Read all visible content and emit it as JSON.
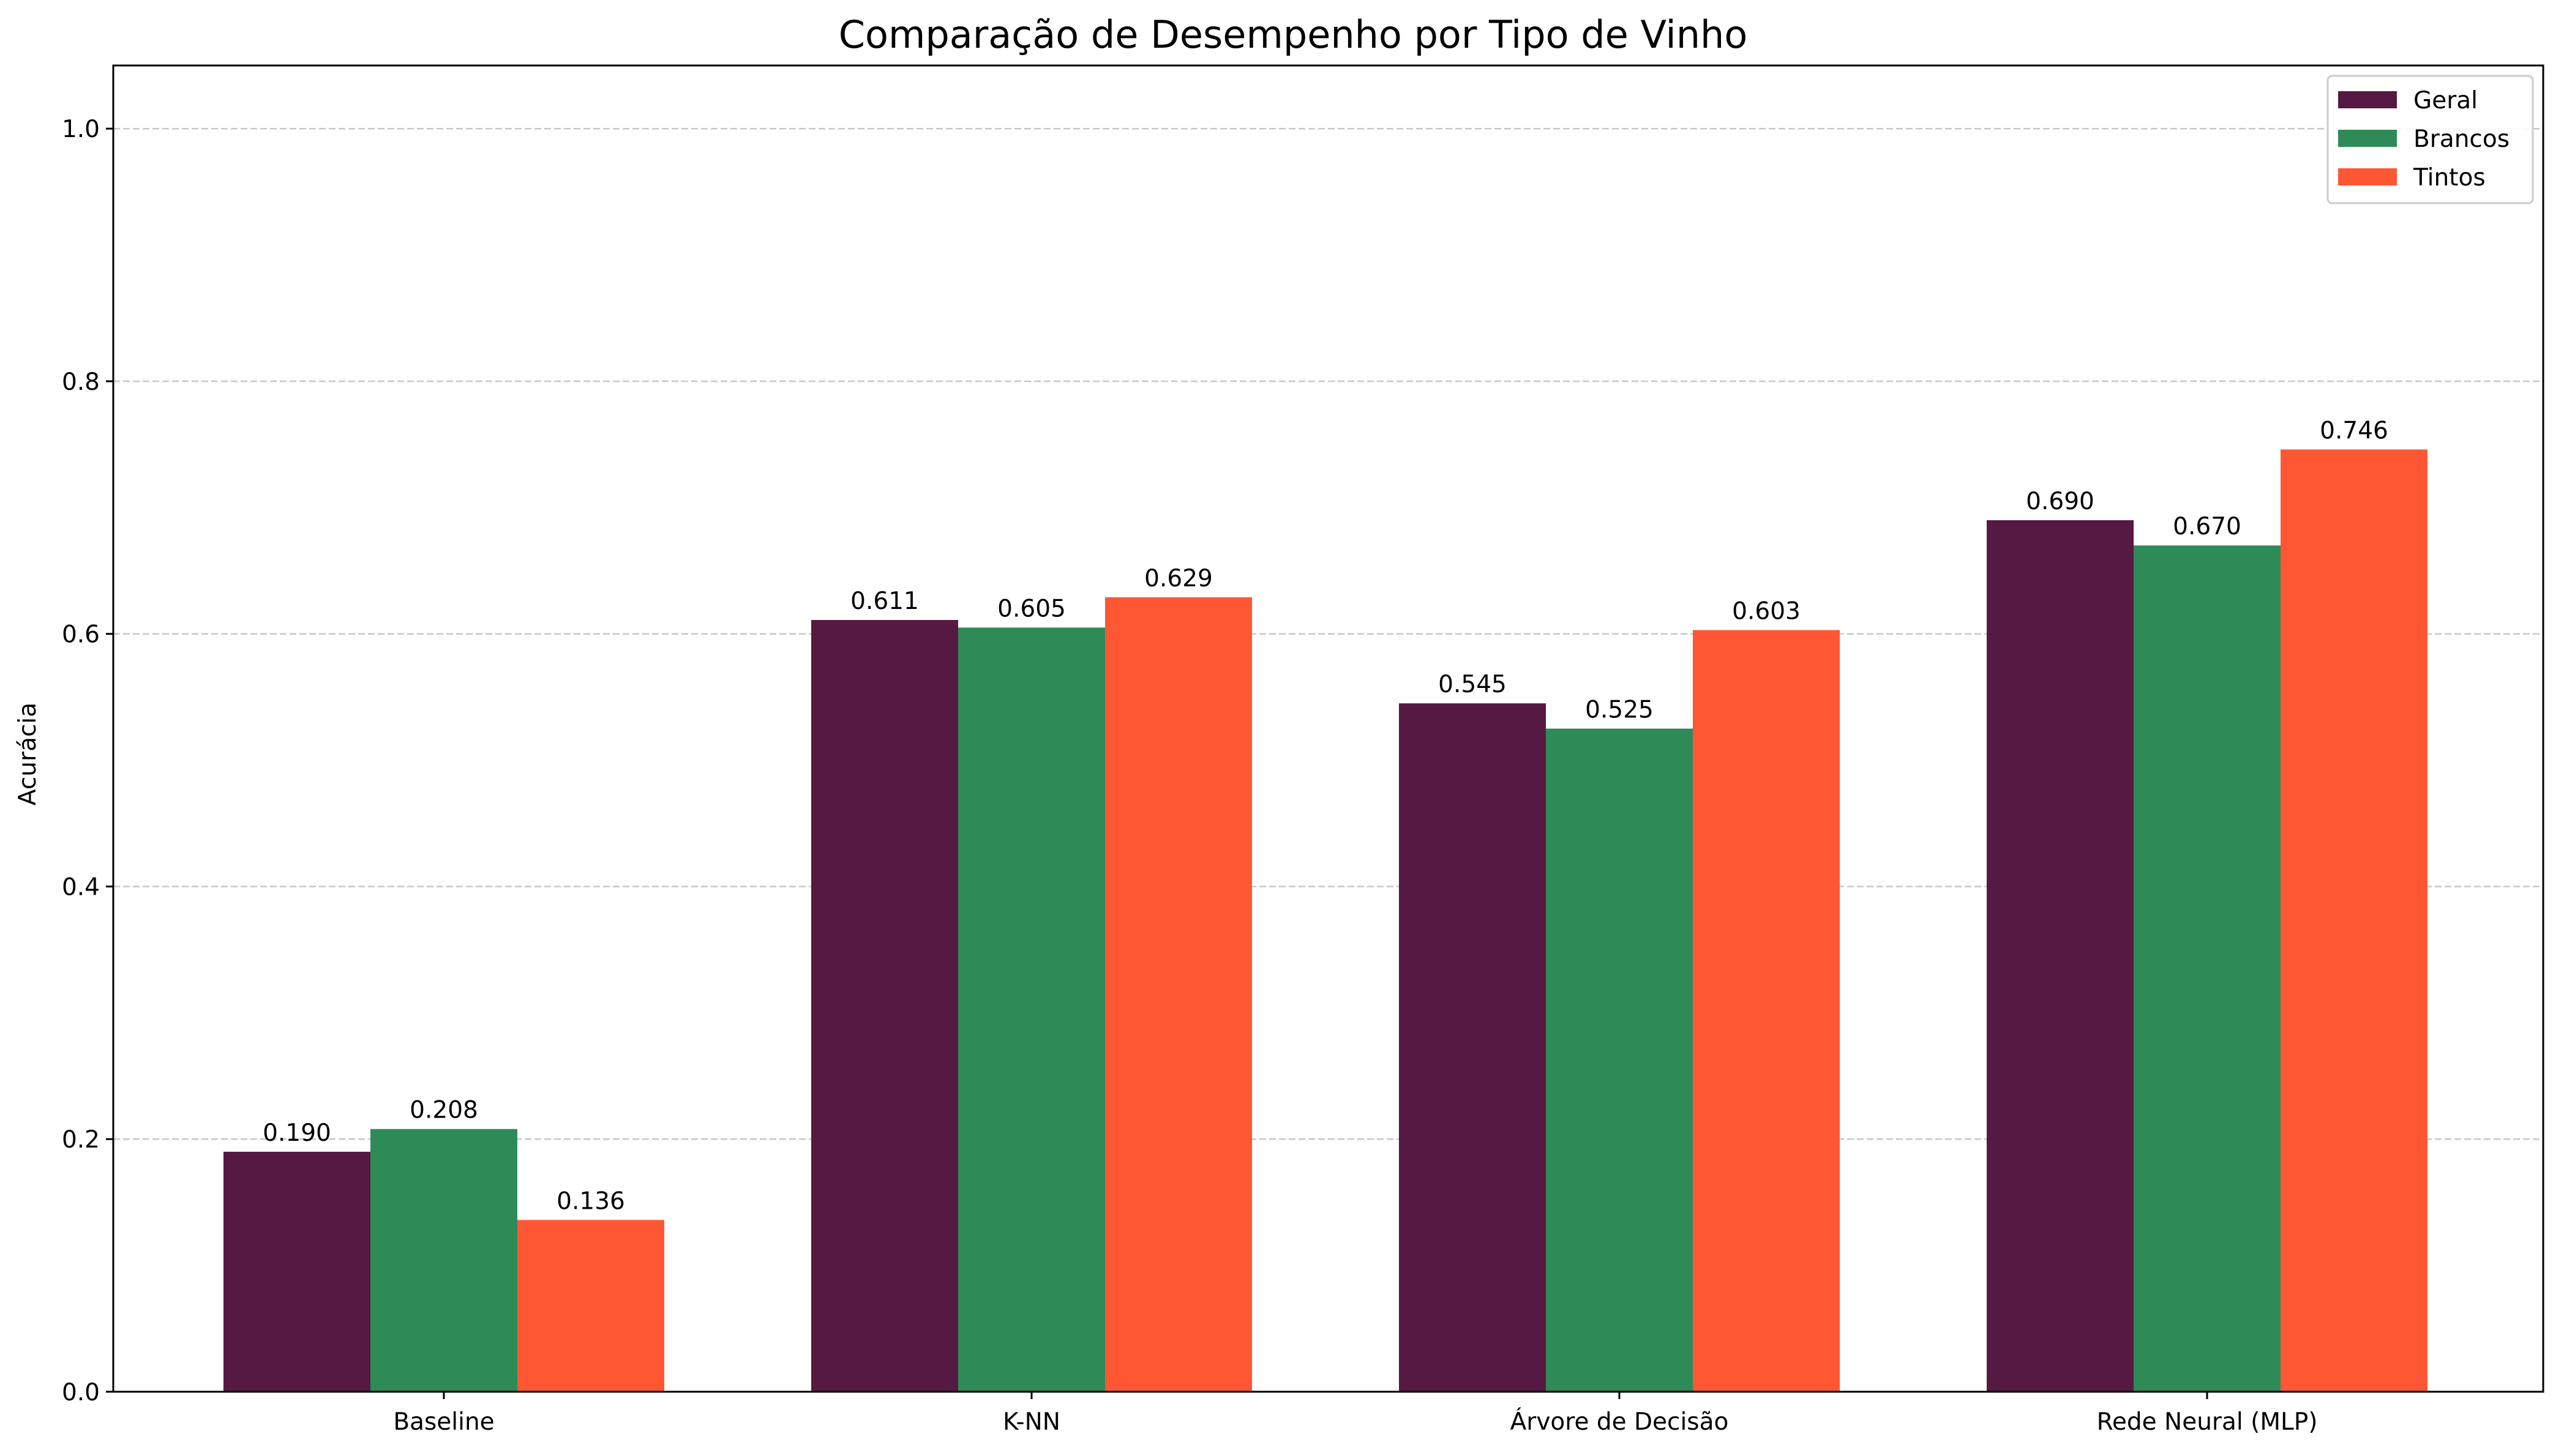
{
  "chart_data": {
    "type": "bar",
    "title": "Comparação de Desempenho por Tipo de Vinho",
    "xlabel": "",
    "ylabel": "Acurácia",
    "categories": [
      "Baseline",
      "K-NN",
      "Árvore de Decisão",
      "Rede Neural (MLP)"
    ],
    "series": [
      {
        "name": "Geral",
        "color": "#561943",
        "values": [
          0.19,
          0.611,
          0.545,
          0.69
        ]
      },
      {
        "name": "Brancos",
        "color": "#2e8b57",
        "values": [
          0.208,
          0.605,
          0.525,
          0.67
        ]
      },
      {
        "name": "Tintos",
        "color": "#ff5733",
        "values": [
          0.136,
          0.629,
          0.603,
          0.746
        ]
      }
    ],
    "ylim": [
      0.0,
      1.05
    ],
    "yticks": [
      "0.0",
      "0.2",
      "0.4",
      "0.6",
      "0.8",
      "1.0"
    ],
    "value_label_format": "3 decimals",
    "grid": "horizontal dashed",
    "legend_position": "top-right"
  }
}
